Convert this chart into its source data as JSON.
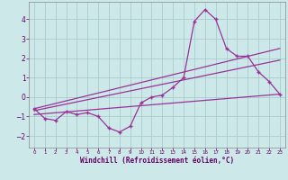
{
  "xlabel": "Windchill (Refroidissement éolien,°C)",
  "bg_color": "#cce8e8",
  "grid_color": "#aacccc",
  "line_color": "#993399",
  "xlim": [
    -0.5,
    23.5
  ],
  "ylim": [
    -2.6,
    4.9
  ],
  "xticks": [
    0,
    1,
    2,
    3,
    4,
    5,
    6,
    7,
    8,
    9,
    10,
    11,
    12,
    13,
    14,
    15,
    16,
    17,
    18,
    19,
    20,
    21,
    22,
    23
  ],
  "yticks": [
    -2,
    -1,
    0,
    1,
    2,
    3,
    4
  ],
  "curve1_x": [
    0,
    1,
    2,
    3,
    4,
    5,
    6,
    7,
    8,
    9,
    10,
    11,
    12,
    13,
    14,
    15,
    16,
    17,
    18,
    19,
    20,
    21,
    22,
    23
  ],
  "curve1_y": [
    -0.6,
    -1.1,
    -1.2,
    -0.75,
    -0.9,
    -0.8,
    -1.0,
    -1.6,
    -1.8,
    -1.5,
    -0.3,
    0.0,
    0.1,
    0.5,
    1.0,
    3.9,
    4.5,
    4.0,
    2.5,
    2.1,
    2.1,
    1.3,
    0.8,
    0.15
  ],
  "line2_x": [
    0,
    23
  ],
  "line2_y": [
    -0.6,
    2.5
  ],
  "line3_x": [
    0,
    23
  ],
  "line3_y": [
    -0.9,
    0.15
  ],
  "line4_x": [
    0,
    23
  ],
  "line4_y": [
    -0.7,
    1.9
  ],
  "tick_color": "#660066",
  "label_color": "#660066"
}
